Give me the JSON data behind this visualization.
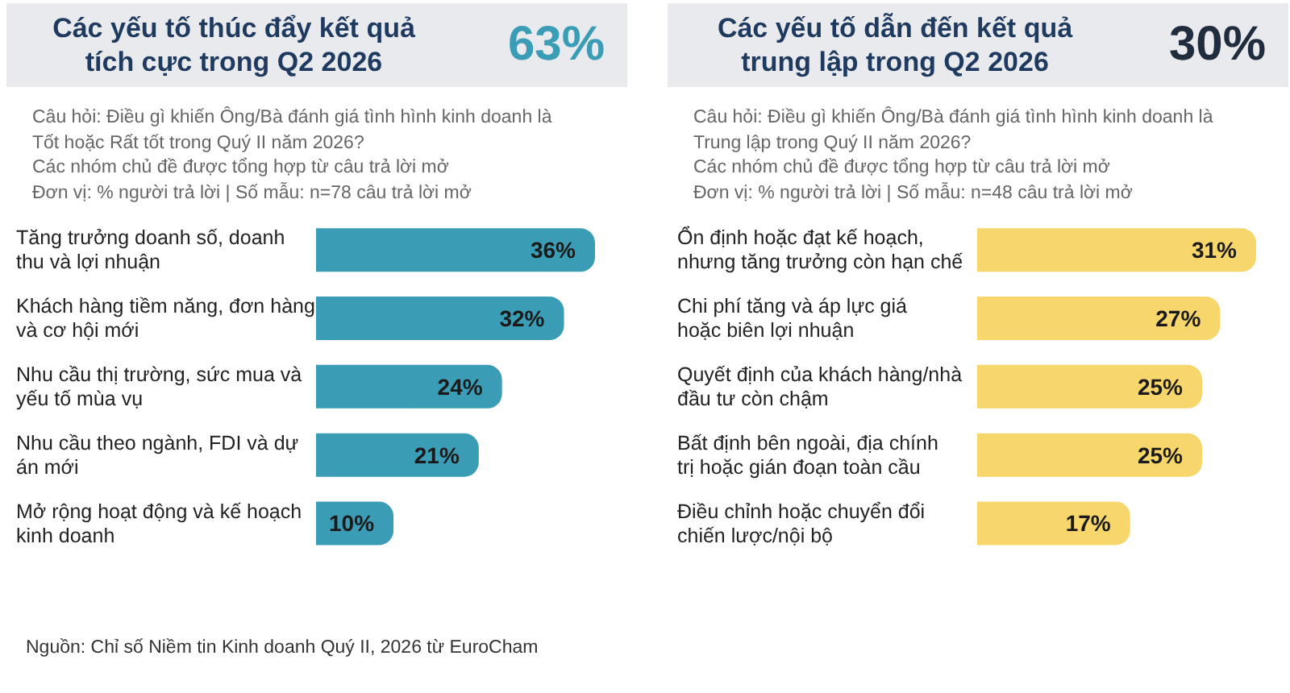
{
  "chart_data": [
    {
      "type": "bar",
      "orientation": "horizontal",
      "title": "Các yếu tố thúc đẩy kết quả tích cực trong Q2 2026",
      "subtitle": "Câu hỏi: Điều gì khiến Ông/Bà đánh giá tình hình kinh doanh là\nTốt hoặc Rất tốt trong Quý II năm 2026?\nCác nhóm chủ đề được tổng hợp từ câu trả lời mở\nĐơn vị: % người trả lời | Số mẫu: n=78 câu trả lời mở",
      "annotations": [
        "63%",
        "Nguồn: Chỉ số Niềm tin Kinh doanh Quý II, 2026 từ EuroCham"
      ],
      "categories": [
        "Tăng trưởng doanh số, doanh thu và lợi nhuận",
        "Khách hàng tiềm năng, đơn hàng và cơ hội mới",
        "Nhu cầu thị trường, sức mua và yếu tố mùa vụ",
        "Nhu cầu theo ngành, FDI và dự án mới",
        "Mở rộng hoạt động và kế hoạch kinh doanh"
      ],
      "values": [
        36,
        32,
        24,
        21,
        10
      ],
      "color": "#3a9db5",
      "value_labels": [
        "36%",
        "32%",
        "24%",
        "21%",
        "10%"
      ]
    },
    {
      "type": "bar",
      "orientation": "horizontal",
      "title": "Các yếu tố dẫn đến kết quả trung lập trong Q2 2026",
      "subtitle": "Câu hỏi: Điều gì khiến Ông/Bà đánh giá tình hình kinh doanh là\nTrung lập trong Quý II năm 2026?\nCác nhóm chủ đề được tổng hợp từ câu trả lời mở\nĐơn vị: % người trả lời | Số mẫu: n=48 câu trả lời mở",
      "annotations": [
        "30%"
      ],
      "categories": [
        "Ổn định hoặc đạt kế hoạch, nhưng tăng trưởng còn hạn chế",
        "Chi phí tăng và áp lực giá hoặc biên lợi nhuận",
        "Quyết định của khách hàng/nhà đầu tư còn chậm",
        "Bất định bên ngoài, địa chính trị hoặc gián đoạn toàn cầu",
        "Điều chỉnh hoặc chuyển đổi chiến lược/nội bộ"
      ],
      "values": [
        31,
        27,
        25,
        25,
        17
      ],
      "color": "#f7d66b",
      "value_labels": [
        "31%",
        "27%",
        "25%",
        "25%",
        "17%"
      ]
    }
  ]
}
